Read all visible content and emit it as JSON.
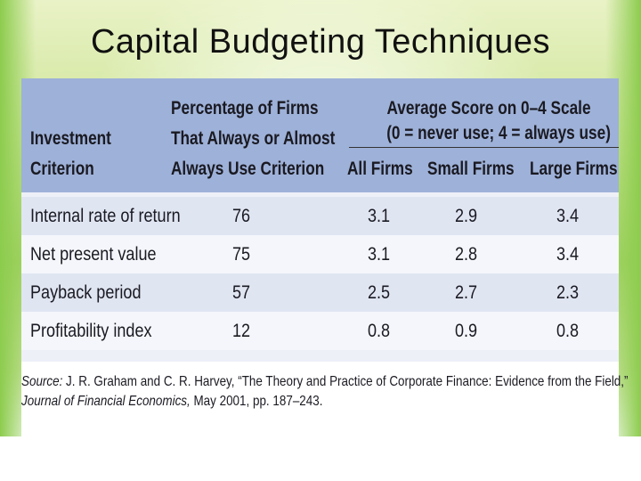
{
  "slide": {
    "title": "Capital Budgeting Techniques"
  },
  "table": {
    "header": {
      "criterion_line1": "Investment",
      "criterion_line2": "Criterion",
      "pct_line1": "Percentage of Firms",
      "pct_line2": "That Always or Almost",
      "pct_line3": "Always Use Criterion",
      "avg_line1": "Average Score on 0–4 Scale",
      "avg_line2": "(0 = never use; 4 = always use)",
      "col_all": "All Firms",
      "col_small": "Small Firms",
      "col_large": "Large Firms"
    },
    "rows": [
      {
        "criterion": "Internal rate of return",
        "pct": "76",
        "all": "3.1",
        "small": "2.9",
        "large": "3.4"
      },
      {
        "criterion": "Net present value",
        "pct": "75",
        "all": "3.1",
        "small": "2.8",
        "large": "3.4"
      },
      {
        "criterion": "Payback period",
        "pct": "57",
        "all": "2.5",
        "small": "2.7",
        "large": "2.3"
      },
      {
        "criterion": "Profitability index",
        "pct": "12",
        "all": "0.8",
        "small": "0.9",
        "large": "0.8"
      }
    ],
    "source": {
      "label": "Source:",
      "line1_rest": " J. R. Graham and C. R. Harvey, “The Theory and Practice of Corporate Finance: Evidence from the Field,”",
      "journal": "Journal of Financial Economics,",
      "line2_rest": " May 2001, pp. 187–243."
    }
  }
}
